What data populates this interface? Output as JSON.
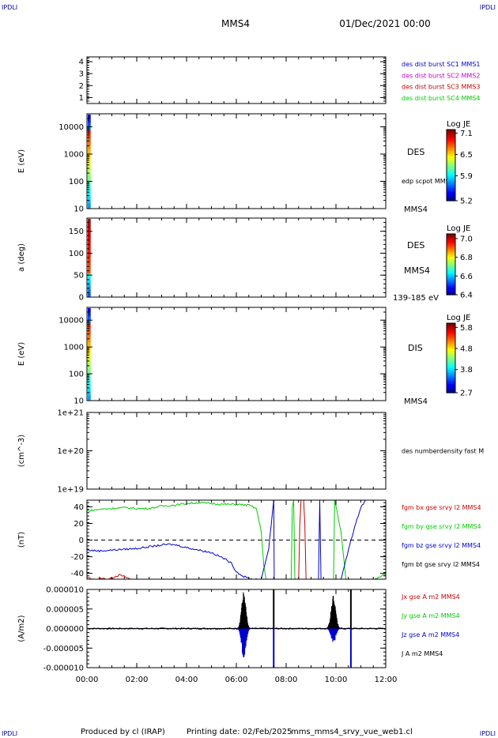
{
  "header": {
    "corner_left": "IPDLI",
    "corner_right": "IPDLI",
    "spacecraft": "MMS4",
    "date": "01/Dec/2021 00:00"
  },
  "footer": {
    "credit": "Produced by cl (IRAP)",
    "printing": "Printing date: 02/Feb/2025",
    "filename": "mms_mms4_srvy_vue_web1.cl",
    "corner_left": "IPDLI",
    "corner_right": "IPDLI"
  },
  "x_axis": {
    "ticks": [
      "00:00",
      "02:00",
      "04:00",
      "06:00",
      "08:00",
      "10:00",
      "12:00"
    ],
    "hours": [
      0,
      2,
      4,
      6,
      8,
      10,
      12
    ],
    "range_hours": [
      0,
      12
    ]
  },
  "chart_data": [
    {
      "type": "line",
      "title": "",
      "ylabel": "",
      "ylim": [
        0.5,
        4.4
      ],
      "yticks": [
        "4",
        "3",
        "2",
        "1"
      ],
      "ytick_values": [
        4,
        3,
        2,
        1
      ],
      "legend": [
        {
          "label": "des dist burst SC1 MMS1",
          "color": "#0000cc"
        },
        {
          "label": "des dist burst SC2 MMS2",
          "color": "#cc00cc"
        },
        {
          "label": "des dist burst SC3 MMS3",
          "color": "#cc0000"
        },
        {
          "label": "des dist burst SC4 MMS4",
          "color": "#00cc00"
        }
      ]
    },
    {
      "type": "heatmap",
      "ylabel": "E (eV)",
      "yscale": "log",
      "ylim": [
        10,
        30000
      ],
      "yticks": [
        "10000",
        "1000",
        "100",
        "10"
      ],
      "ytick_values": [
        10000,
        1000,
        100,
        10
      ],
      "side_labels": [
        "DES",
        "edp scpot MMS4",
        "MMS4"
      ],
      "colorbar": {
        "title": "Log JE",
        "ticks": [
          "7.1",
          "6.5",
          "5.9",
          "5.2"
        ],
        "values": [
          7.1,
          6.5,
          5.9,
          5.2
        ],
        "range": [
          5.2,
          7.2
        ]
      },
      "data_extent_hours": [
        0,
        0.15
      ]
    },
    {
      "type": "heatmap",
      "ylabel": "a (deg)",
      "ylim": [
        0,
        180
      ],
      "yticks": [
        "150",
        "100",
        "50",
        "0"
      ],
      "ytick_values": [
        150,
        100,
        50,
        0
      ],
      "side_labels": [
        "DES",
        "MMS4",
        "139-185 eV"
      ],
      "colorbar": {
        "title": "Log JE",
        "ticks": [
          "7.0",
          "6.8",
          "6.6",
          "6.4"
        ],
        "values": [
          7.0,
          6.8,
          6.6,
          6.4
        ],
        "range": [
          6.4,
          7.05
        ]
      },
      "data_extent_hours": [
        0,
        0.15
      ]
    },
    {
      "type": "heatmap",
      "ylabel": "E (eV)",
      "yscale": "log",
      "ylim": [
        10,
        30000
      ],
      "yticks": [
        "10000",
        "1000",
        "100",
        "10"
      ],
      "ytick_values": [
        10000,
        1000,
        100,
        10
      ],
      "side_labels": [
        "DIS",
        "MMS4"
      ],
      "colorbar": {
        "title": "Log JE",
        "ticks": [
          "5.8",
          "4.8",
          "3.8",
          "2.7"
        ],
        "values": [
          5.8,
          4.8,
          3.8,
          2.7
        ],
        "range": [
          2.7,
          6.0
        ]
      },
      "data_extent_hours": [
        0,
        0.15
      ]
    },
    {
      "type": "line",
      "ylabel": "(cm^-3)",
      "yscale": "log",
      "ylim": [
        1e+19,
        1e+21
      ],
      "yticks": [
        "1e+21",
        "1e+20",
        "1e+19"
      ],
      "ytick_values": [
        1e+21,
        1e+20,
        1e+19
      ],
      "legend": [
        {
          "label": "des numberdensity fast M",
          "color": "#000000"
        }
      ]
    },
    {
      "type": "line",
      "ylabel": "(nT)",
      "ylim": [
        -47,
        48
      ],
      "yticks": [
        "40",
        "20",
        "0",
        "-20",
        "-40"
      ],
      "ytick_values": [
        40,
        20,
        0,
        -20,
        -40
      ],
      "zero_line": true,
      "legend": [
        {
          "label": "fgm bx gse srvy l2 MMS4",
          "color": "#cc0000"
        },
        {
          "label": "fgm by gse srvy l2 MMS4",
          "color": "#00cc00"
        },
        {
          "label": "fgm bz gse srvy l2 MMS4",
          "color": "#0000cc"
        },
        {
          "label": "fgm bt gse srvy l2 MMS4",
          "color": "#000000"
        }
      ],
      "series": [
        {
          "name": "fgm bx gse srvy l2 MMS4",
          "color": "#cc0000",
          "x": [
            0,
            0.3,
            0.6,
            0.9,
            1.1,
            1.3,
            1.6,
            1.8,
            8.5,
            8.55,
            8.6,
            8.7,
            8.75,
            8.8
          ],
          "y": [
            -45,
            -48,
            -46,
            -47,
            -44,
            -42,
            -45,
            -48,
            -48,
            20,
            48,
            48,
            20,
            -48
          ]
        },
        {
          "name": "fgm by gse srvy l2 MMS4",
          "color": "#00cc00",
          "x": [
            0,
            0.5,
            1,
            1.5,
            2,
            2.5,
            3,
            3.5,
            4,
            4.5,
            5,
            5.5,
            6,
            6.5,
            6.8,
            7,
            7.1,
            7.2,
            8.2,
            8.25,
            8.3,
            8.35,
            9.9,
            9.95,
            10.2,
            10.4,
            11.5,
            11.8,
            12
          ],
          "y": [
            35,
            37,
            38,
            39,
            38,
            38,
            41,
            42,
            44,
            45,
            44,
            43,
            43,
            42,
            38,
            10,
            -30,
            -48,
            -48,
            40,
            48,
            -48,
            -48,
            48,
            10,
            -48,
            -48,
            -44,
            -40
          ]
        },
        {
          "name": "fgm bz gse srvy l2 MMS4",
          "color": "#0000cc",
          "x": [
            0,
            0.5,
            1,
            1.5,
            2,
            2.5,
            3,
            3.3,
            3.6,
            4,
            4.5,
            5,
            5.5,
            5.8,
            6,
            6.3,
            6.6,
            6.8,
            7.0,
            7.3,
            7.5,
            7.52,
            9.3,
            9.35,
            9.4,
            10.2,
            10.6,
            11,
            11.2
          ],
          "y": [
            -12,
            -13,
            -12,
            -11,
            -10,
            -8,
            -6,
            -5,
            -6,
            -9,
            -12,
            -15,
            -22,
            -28,
            -38,
            -44,
            -47,
            -47,
            -48,
            -10,
            48,
            -48,
            -48,
            48,
            -48,
            -48,
            0,
            40,
            48
          ]
        },
        {
          "name": "fgm bt gse srvy l2 MMS4",
          "color": "#000000",
          "x": [],
          "y": []
        }
      ]
    },
    {
      "type": "line",
      "ylabel": "(A/m2)",
      "ylim": [
        -1e-05,
        1e-05
      ],
      "yticks": [
        "0.000010",
        "0.000005",
        "0.000000",
        "-0.000005",
        "-0.000010"
      ],
      "ytick_values": [
        1e-05,
        5e-06,
        0,
        -5e-06,
        -1e-05
      ],
      "legend": [
        {
          "label": "Jx gse A m2 MMS4",
          "color": "#cc0000"
        },
        {
          "label": "Jy gse A m2 MMS4",
          "color": "#00cc00"
        },
        {
          "label": "Jz gse A m2 MMS4",
          "color": "#0000cc"
        },
        {
          "label": "J A m2 MMS4",
          "color": "#000000"
        }
      ],
      "spikes": [
        {
          "hour": 7.5,
          "color": "#000000",
          "from": 1e-05,
          "to": 0
        },
        {
          "hour": 7.5,
          "color": "#0000cc",
          "from": 0,
          "to": -1e-05
        },
        {
          "hour": 10.6,
          "color": "#000000",
          "from": 1e-05,
          "to": 0
        },
        {
          "hour": 10.6,
          "color": "#0000cc",
          "from": 0,
          "to": -1e-05
        }
      ],
      "bursts": [
        {
          "center": 6.3,
          "width": 0.55,
          "amp_pos": 1e-05,
          "amp_neg": -8.5e-06,
          "color_pos": "#000000",
          "color_neg": "#0000cc"
        },
        {
          "center": 9.9,
          "width": 0.6,
          "amp_pos": 8.5e-06,
          "amp_neg": -4e-06,
          "color_pos": "#000000",
          "color_neg": "#0000cc"
        }
      ]
    }
  ]
}
